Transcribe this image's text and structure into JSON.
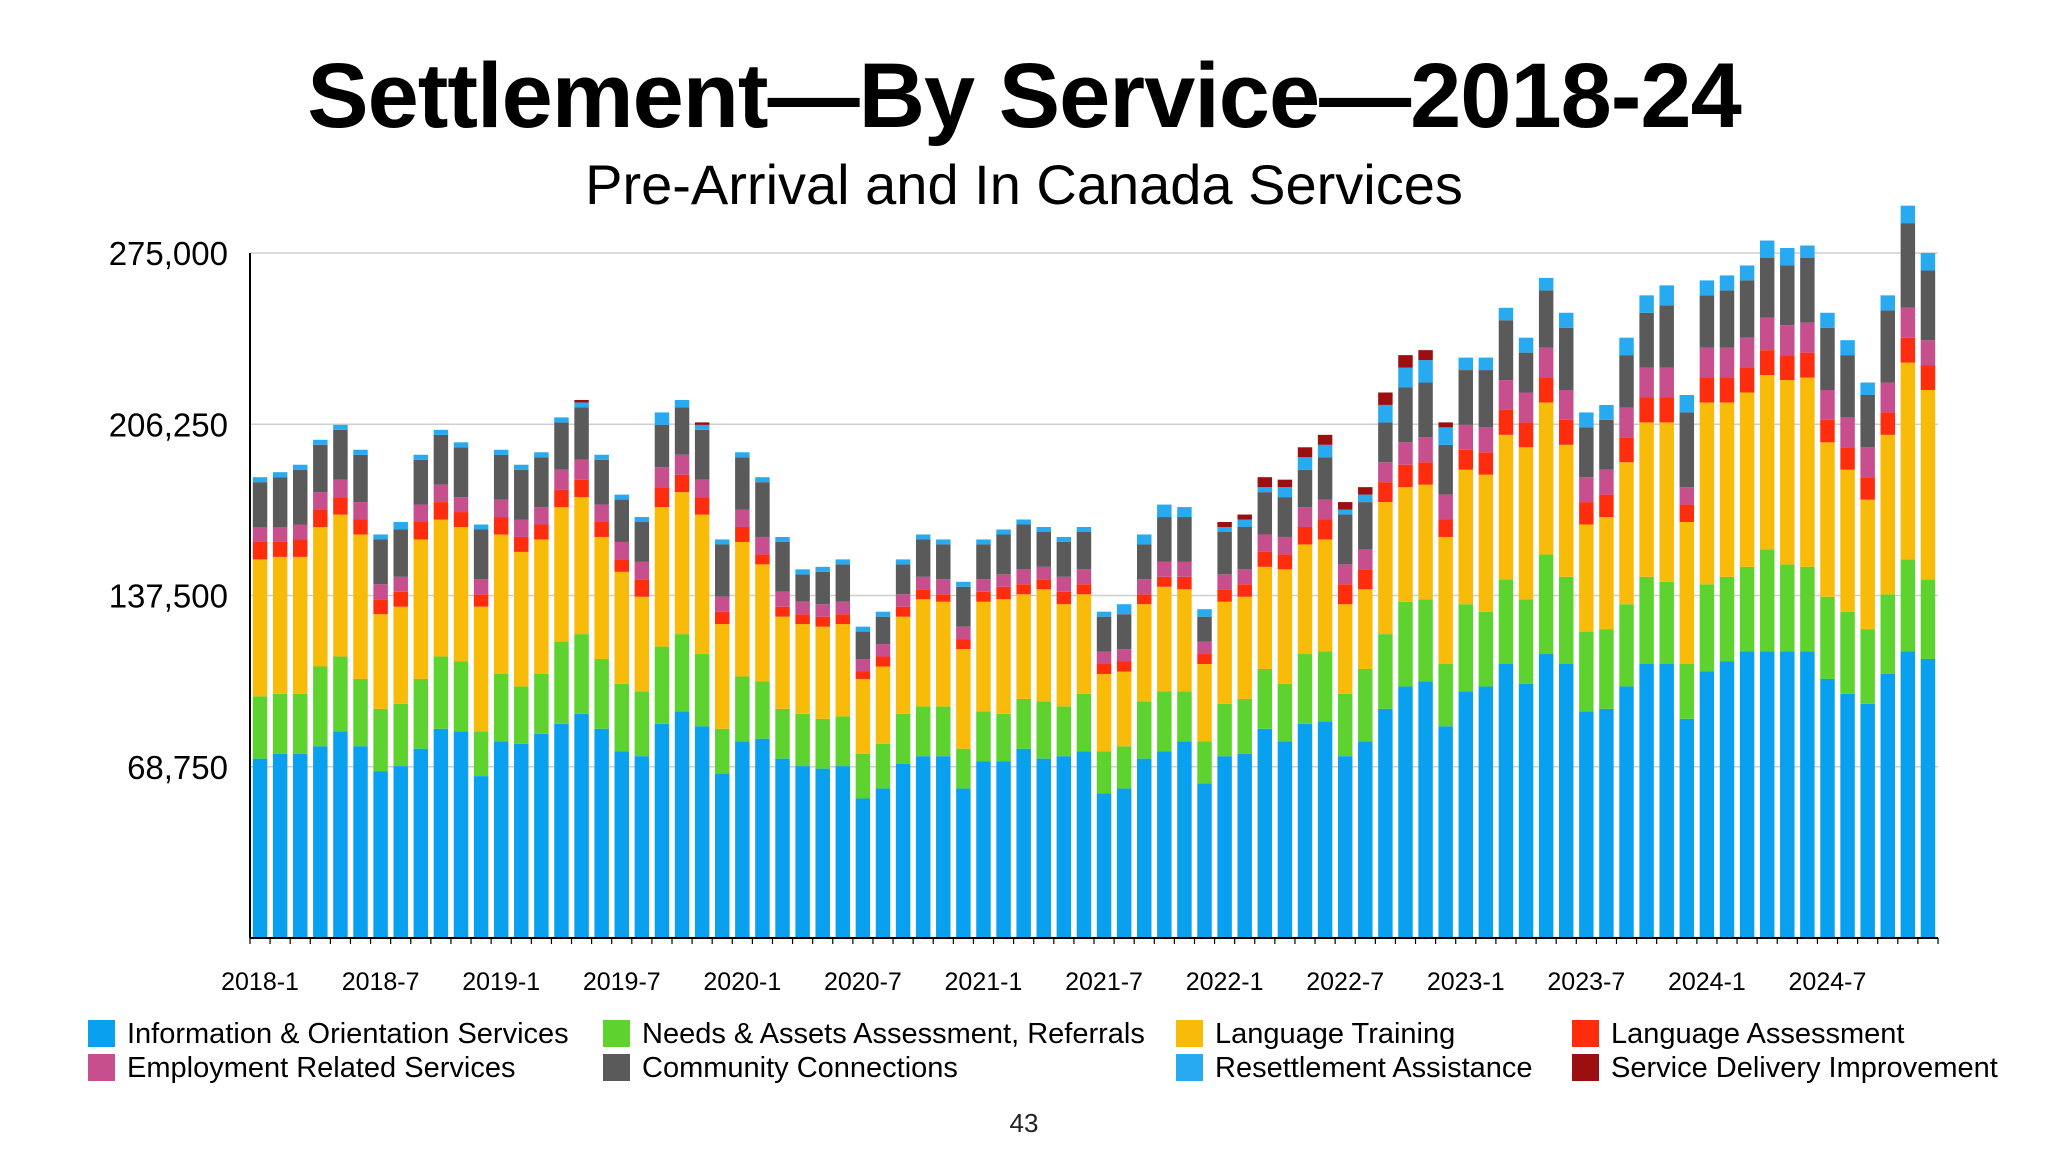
{
  "slide": {
    "title": "Settlement—By Service—2018-24",
    "subtitle": "Pre-Arrival and In Canada Services",
    "page_number": "43"
  },
  "chart_data": {
    "type": "bar",
    "stacked": true,
    "ylim": [
      0,
      275000
    ],
    "y_ticks": [
      68750,
      137500,
      206250,
      275000
    ],
    "y_tick_labels": [
      "68,750",
      "137,500",
      "206,250",
      "275,000"
    ],
    "x_tick_labels": [
      "2018-1",
      "2018-7",
      "2019-1",
      "2019-7",
      "2020-1",
      "2020-7",
      "2021-1",
      "2021-7",
      "2022-1",
      "2022-7",
      "2023-1",
      "2023-7",
      "2024-1",
      "2024-7"
    ],
    "grid": true,
    "legend_position": "bottom",
    "categories": [
      "2018-1",
      "2018-2",
      "2018-3",
      "2018-4",
      "2018-5",
      "2018-6",
      "2018-7",
      "2018-8",
      "2018-9",
      "2018-10",
      "2018-11",
      "2018-12",
      "2019-1",
      "2019-2",
      "2019-3",
      "2019-4",
      "2019-5",
      "2019-6",
      "2019-7",
      "2019-8",
      "2019-9",
      "2019-10",
      "2019-11",
      "2019-12",
      "2020-1",
      "2020-2",
      "2020-3",
      "2020-4",
      "2020-5",
      "2020-6",
      "2020-7",
      "2020-8",
      "2020-9",
      "2020-10",
      "2020-11",
      "2020-12",
      "2021-1",
      "2021-2",
      "2021-3",
      "2021-4",
      "2021-5",
      "2021-6",
      "2021-7",
      "2021-8",
      "2021-9",
      "2021-10",
      "2021-11",
      "2021-12",
      "2022-1",
      "2022-2",
      "2022-3",
      "2022-4",
      "2022-5",
      "2022-6",
      "2022-7",
      "2022-8",
      "2022-9",
      "2022-10",
      "2022-11",
      "2022-12",
      "2023-1",
      "2023-2",
      "2023-3",
      "2023-4",
      "2023-5",
      "2023-6",
      "2023-7",
      "2023-8",
      "2023-9",
      "2023-10",
      "2023-11",
      "2023-12",
      "2024-1",
      "2024-2",
      "2024-3",
      "2024-4",
      "2024-5",
      "2024-6",
      "2024-7",
      "2024-8",
      "2024-9",
      "2024-10",
      "2024-11",
      "2024-12"
    ],
    "series": [
      {
        "name": "Information & Orientation Services",
        "color": "#0aa0f0",
        "values": [
          72000,
          74000,
          74000,
          77000,
          83000,
          77000,
          67000,
          69000,
          76000,
          84000,
          83000,
          65000,
          79000,
          78000,
          82000,
          86000,
          90000,
          84000,
          75000,
          73000,
          86000,
          91000,
          85000,
          66000,
          79000,
          80000,
          72000,
          69000,
          68000,
          69000,
          56000,
          60000,
          70000,
          73000,
          73000,
          60000,
          71000,
          71000,
          76000,
          72000,
          73000,
          75000,
          58000,
          60000,
          72000,
          75000,
          79000,
          62000,
          73000,
          74000,
          84000,
          79000,
          86000,
          87000,
          73000,
          79000,
          92000,
          101000,
          103000,
          85000,
          99000,
          101000,
          110000,
          102000,
          114000,
          110000,
          91000,
          92000,
          101000,
          110000,
          110000,
          88000,
          107000,
          111000,
          115000,
          115000,
          115000,
          115000,
          104000,
          98000,
          94000,
          106000,
          115000,
          112000
        ]
      },
      {
        "name": "Needs & Assets Assessment, Referrals",
        "color": "#5ed330",
        "values": [
          25000,
          24000,
          24000,
          32000,
          30000,
          27000,
          25000,
          25000,
          28000,
          29000,
          28000,
          18000,
          27000,
          23000,
          24000,
          33000,
          32000,
          28000,
          27000,
          26000,
          31000,
          31000,
          29000,
          18000,
          26000,
          23000,
          20000,
          21000,
          20000,
          20000,
          18000,
          18000,
          20000,
          20000,
          20000,
          16000,
          20000,
          19000,
          20000,
          23000,
          20000,
          23000,
          17000,
          17000,
          23000,
          24000,
          20000,
          17000,
          21000,
          22000,
          24000,
          23000,
          28000,
          28000,
          25000,
          29000,
          30000,
          34000,
          33000,
          25000,
          35000,
          30000,
          34000,
          34000,
          40000,
          35000,
          32000,
          32000,
          33000,
          35000,
          33000,
          22000,
          35000,
          34000,
          34000,
          41000,
          35000,
          34000,
          33000,
          33000,
          30000,
          32000,
          37000,
          32000
        ]
      },
      {
        "name": "Language Training",
        "color": "#f9bb0a",
        "values": [
          55000,
          55000,
          55000,
          56000,
          57000,
          58000,
          38000,
          39000,
          56000,
          55000,
          54000,
          50000,
          56000,
          54000,
          54000,
          54000,
          55000,
          49000,
          45000,
          38000,
          56000,
          57000,
          56000,
          42000,
          54000,
          47000,
          37000,
          36000,
          37000,
          37000,
          30000,
          31000,
          39000,
          43000,
          42000,
          40000,
          44000,
          46000,
          42000,
          45000,
          41000,
          40000,
          31000,
          30000,
          39000,
          42000,
          41000,
          31000,
          41000,
          41000,
          41000,
          46000,
          44000,
          45000,
          36000,
          32000,
          53000,
          46000,
          46000,
          51000,
          54000,
          55000,
          58000,
          61000,
          61000,
          53000,
          43000,
          45000,
          57000,
          62000,
          64000,
          57000,
          73000,
          70000,
          70000,
          70000,
          74000,
          76000,
          62000,
          57000,
          52000,
          64000,
          79000,
          76000
        ]
      },
      {
        "name": "Language Assessment",
        "color": "#fe2d0e",
        "values": [
          7000,
          6000,
          7000,
          7000,
          7000,
          6000,
          6000,
          6000,
          7000,
          7000,
          6000,
          5000,
          7000,
          6000,
          6000,
          7000,
          7000,
          6000,
          5000,
          7000,
          8000,
          7000,
          7000,
          5000,
          6000,
          4000,
          4000,
          4000,
          4000,
          4000,
          3000,
          4000,
          4000,
          4000,
          3000,
          4000,
          4000,
          5000,
          4000,
          4000,
          5000,
          4000,
          4000,
          4000,
          4000,
          4000,
          5000,
          4000,
          5000,
          5000,
          6000,
          6000,
          7000,
          8000,
          8000,
          8000,
          8000,
          9000,
          9000,
          7000,
          8000,
          9000,
          10000,
          10000,
          10000,
          10000,
          9000,
          9000,
          10000,
          10000,
          10000,
          7000,
          10000,
          10000,
          10000,
          10000,
          10000,
          10000,
          9000,
          9000,
          9000,
          9000,
          10000,
          10000
        ]
      },
      {
        "name": "Employment Related Services",
        "color": "#c84f8d",
        "values": [
          6000,
          6000,
          6000,
          7000,
          7000,
          7000,
          6000,
          6000,
          7000,
          7000,
          6000,
          6000,
          7000,
          7000,
          7000,
          8000,
          8000,
          7000,
          7000,
          7000,
          8000,
          8000,
          7000,
          6000,
          7000,
          7000,
          6000,
          5000,
          5000,
          5000,
          5000,
          5000,
          5000,
          5000,
          6000,
          5000,
          5000,
          5000,
          6000,
          5000,
          6000,
          6000,
          5000,
          5000,
          6000,
          6000,
          6000,
          5000,
          6000,
          6000,
          7000,
          7000,
          8000,
          8000,
          8000,
          8000,
          8000,
          9000,
          10000,
          10000,
          10000,
          10000,
          12000,
          12000,
          12000,
          12000,
          10000,
          10000,
          12000,
          12000,
          12000,
          7000,
          12000,
          12000,
          12000,
          13000,
          12000,
          12000,
          12000,
          12000,
          12000,
          12000,
          12000,
          10000
        ]
      },
      {
        "name": "Community Connections",
        "color": "#5a5a5a",
        "values": [
          18000,
          20000,
          22000,
          19000,
          20000,
          19000,
          18000,
          19000,
          18000,
          20000,
          20000,
          20000,
          18000,
          20000,
          20000,
          19000,
          21000,
          18000,
          17000,
          16000,
          17000,
          19000,
          20000,
          21000,
          21000,
          22000,
          20000,
          11000,
          13000,
          15000,
          11000,
          11000,
          12000,
          15000,
          14000,
          16000,
          14000,
          16000,
          18000,
          14000,
          14000,
          15000,
          14000,
          14000,
          14000,
          18000,
          18000,
          10000,
          17000,
          17000,
          17000,
          16000,
          15000,
          17000,
          20000,
          19000,
          16000,
          22000,
          22000,
          20000,
          22000,
          23000,
          24000,
          16000,
          23000,
          25000,
          20000,
          20000,
          21000,
          22000,
          25000,
          30000,
          21000,
          23000,
          23000,
          24000,
          24000,
          26000,
          25000,
          25000,
          21000,
          29000,
          34000,
          28000
        ]
      },
      {
        "name": "Resettlement Assistance",
        "color": "#27aaf0",
        "values": [
          2000,
          2000,
          2000,
          2000,
          2000,
          2000,
          2000,
          3000,
          2000,
          2000,
          2000,
          2000,
          2000,
          2000,
          2000,
          2000,
          2000,
          2000,
          2000,
          2000,
          5000,
          3000,
          2000,
          2000,
          2000,
          2000,
          2000,
          2000,
          2000,
          2000,
          2000,
          2000,
          2000,
          2000,
          2000,
          2000,
          2000,
          2000,
          2000,
          2000,
          2000,
          2000,
          2000,
          4000,
          4000,
          5000,
          4000,
          3000,
          2000,
          3000,
          2000,
          4000,
          5000,
          5000,
          2000,
          3000,
          7000,
          8000,
          9000,
          7000,
          5000,
          5000,
          5000,
          6000,
          5000,
          6000,
          6000,
          6000,
          7000,
          7000,
          8000,
          7000,
          6000,
          6000,
          6000,
          7000,
          7000,
          5000,
          6000,
          6000,
          5000,
          6000,
          7000,
          7000
        ]
      },
      {
        "name": "Service Delivery Improvement",
        "color": "#9b0f10",
        "values": [
          0,
          0,
          0,
          0,
          0,
          0,
          0,
          0,
          0,
          0,
          0,
          0,
          0,
          0,
          0,
          0,
          1000,
          0,
          0,
          0,
          0,
          0,
          1000,
          0,
          0,
          0,
          0,
          0,
          0,
          0,
          0,
          0,
          0,
          0,
          0,
          0,
          0,
          0,
          0,
          0,
          0,
          0,
          0,
          0,
          0,
          0,
          0,
          0,
          2000,
          2000,
          4000,
          3000,
          4000,
          4000,
          3000,
          3000,
          5000,
          5000,
          4000,
          2000,
          0,
          0,
          0,
          0,
          0,
          0,
          0,
          0,
          0,
          0,
          0,
          0,
          0,
          0,
          0,
          0,
          0,
          0,
          0,
          0,
          0,
          0,
          0,
          0
        ]
      }
    ]
  }
}
